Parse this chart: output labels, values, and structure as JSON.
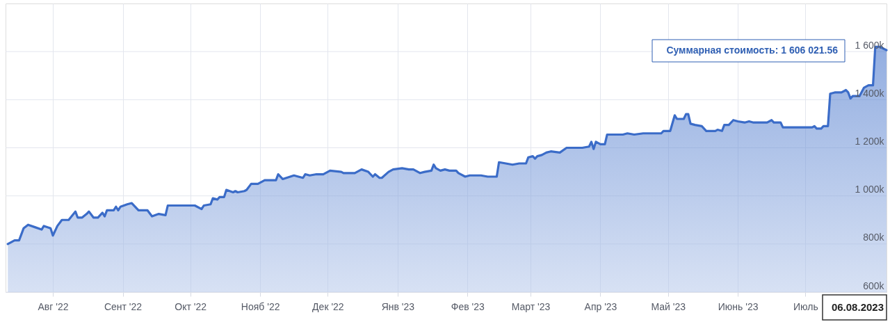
{
  "chart_data": {
    "type": "area",
    "x": [
      "2022-07-12",
      "2022-07-15",
      "2022-07-17",
      "2022-07-19",
      "2022-07-21",
      "2022-07-24",
      "2022-07-27",
      "2022-07-28",
      "2022-07-31",
      "2022-08-01",
      "2022-08-03",
      "2022-08-05",
      "2022-08-08",
      "2022-08-11",
      "2022-08-12",
      "2022-08-14",
      "2022-08-16",
      "2022-08-17",
      "2022-08-19",
      "2022-08-21",
      "2022-08-23",
      "2022-08-24",
      "2022-08-25",
      "2022-08-28",
      "2022-08-29",
      "2022-08-30",
      "2022-08-31",
      "2022-09-03",
      "2022-09-05",
      "2022-09-08",
      "2022-09-12",
      "2022-09-14",
      "2022-09-17",
      "2022-09-20",
      "2022-09-21",
      "2022-10-03",
      "2022-10-06",
      "2022-10-07",
      "2022-10-10",
      "2022-10-11",
      "2022-10-13",
      "2022-10-14",
      "2022-10-16",
      "2022-10-17",
      "2022-10-20",
      "2022-10-21",
      "2022-10-22",
      "2022-10-25",
      "2022-10-26",
      "2022-10-28",
      "2022-10-31",
      "2022-11-03",
      "2022-11-08",
      "2022-11-09",
      "2022-11-11",
      "2022-11-16",
      "2022-11-20",
      "2022-11-21",
      "2022-11-23",
      "2022-11-26",
      "2022-11-29",
      "2022-12-02",
      "2022-12-07",
      "2022-12-08",
      "2022-12-13",
      "2022-12-16",
      "2022-12-19",
      "2022-12-21",
      "2022-12-22",
      "2022-12-24",
      "2022-12-25",
      "2022-12-28",
      "2022-12-30",
      "2023-01-03",
      "2023-01-06",
      "2023-01-08",
      "2023-01-11",
      "2023-01-13",
      "2023-01-16",
      "2023-01-17",
      "2023-01-18",
      "2023-01-20",
      "2023-01-22",
      "2023-01-24",
      "2023-01-27",
      "2023-01-28",
      "2023-01-31",
      "2023-02-02",
      "2023-02-07",
      "2023-02-10",
      "2023-02-14",
      "2023-02-15",
      "2023-02-18",
      "2023-02-21",
      "2023-02-24",
      "2023-02-27",
      "2023-02-28",
      "2023-03-02",
      "2023-03-03",
      "2023-03-04",
      "2023-03-06",
      "2023-03-08",
      "2023-03-10",
      "2023-03-14",
      "2023-03-17",
      "2023-03-24",
      "2023-03-27",
      "2023-03-28",
      "2023-03-29",
      "2023-03-30",
      "2023-04-01",
      "2023-04-03",
      "2023-04-04",
      "2023-04-11",
      "2023-04-13",
      "2023-04-16",
      "2023-04-20",
      "2023-04-28",
      "2023-04-29",
      "2023-05-02",
      "2023-05-04",
      "2023-05-05",
      "2023-05-08",
      "2023-05-09",
      "2023-05-10",
      "2023-05-11",
      "2023-05-13",
      "2023-05-16",
      "2023-05-18",
      "2023-05-22",
      "2023-05-23",
      "2023-05-25",
      "2023-05-26",
      "2023-05-28",
      "2023-05-30",
      "2023-06-01",
      "2023-06-04",
      "2023-06-06",
      "2023-06-08",
      "2023-06-14",
      "2023-06-16",
      "2023-06-17",
      "2023-06-20",
      "2023-06-21",
      "2023-06-24",
      "2023-07-04",
      "2023-07-05",
      "2023-07-06",
      "2023-07-08",
      "2023-07-09",
      "2023-07-11",
      "2023-07-12",
      "2023-07-14",
      "2023-07-17",
      "2023-07-19",
      "2023-07-20",
      "2023-07-21",
      "2023-07-22",
      "2023-07-25",
      "2023-07-27",
      "2023-07-29",
      "2023-07-31",
      "2023-08-01",
      "2023-08-03",
      "2023-08-06"
    ],
    "series": [
      {
        "color": "#3b6cc8",
        "values": [
          800000,
          815000,
          815000,
          865000,
          880000,
          870000,
          860000,
          875000,
          865000,
          835000,
          875000,
          900000,
          900000,
          935000,
          910000,
          910000,
          925000,
          935000,
          910000,
          910000,
          930000,
          915000,
          940000,
          940000,
          955000,
          940000,
          955000,
          965000,
          970000,
          940000,
          940000,
          915000,
          925000,
          920000,
          960000,
          960000,
          945000,
          960000,
          965000,
          990000,
          985000,
          995000,
          995000,
          1025000,
          1015000,
          1020000,
          1015000,
          1020000,
          1025000,
          1050000,
          1050000,
          1065000,
          1065000,
          1090000,
          1070000,
          1085000,
          1075000,
          1090000,
          1085000,
          1090000,
          1090000,
          1105000,
          1100000,
          1095000,
          1095000,
          1110000,
          1100000,
          1080000,
          1090000,
          1075000,
          1075000,
          1100000,
          1110000,
          1115000,
          1110000,
          1110000,
          1095000,
          1100000,
          1105000,
          1130000,
          1115000,
          1105000,
          1110000,
          1105000,
          1105000,
          1095000,
          1080000,
          1085000,
          1085000,
          1080000,
          1080000,
          1140000,
          1135000,
          1130000,
          1135000,
          1135000,
          1160000,
          1165000,
          1155000,
          1165000,
          1170000,
          1180000,
          1185000,
          1180000,
          1200000,
          1200000,
          1205000,
          1225000,
          1195000,
          1225000,
          1215000,
          1215000,
          1255000,
          1255000,
          1260000,
          1255000,
          1260000,
          1260000,
          1270000,
          1270000,
          1335000,
          1320000,
          1320000,
          1340000,
          1340000,
          1300000,
          1295000,
          1290000,
          1270000,
          1270000,
          1275000,
          1270000,
          1295000,
          1295000,
          1315000,
          1310000,
          1305000,
          1310000,
          1305000,
          1305000,
          1315000,
          1305000,
          1305000,
          1285000,
          1285000,
          1285000,
          1290000,
          1280000,
          1280000,
          1290000,
          1290000,
          1425000,
          1430000,
          1430000,
          1440000,
          1430000,
          1405000,
          1415000,
          1415000,
          1450000,
          1460000,
          1460000,
          1620000,
          1620000,
          1606021.56
        ]
      }
    ],
    "xlim": [
      "2022-07-11",
      "2023-08-06"
    ],
    "xticks": [
      {
        "value": "2022-08-01",
        "label": "Авг '22"
      },
      {
        "value": "2022-09-01",
        "label": "Сент '22"
      },
      {
        "value": "2022-10-01",
        "label": "Окт '22"
      },
      {
        "value": "2022-11-01",
        "label": "Нояб '22"
      },
      {
        "value": "2022-12-01",
        "label": "Дек '22"
      },
      {
        "value": "2023-01-01",
        "label": "Янв '23"
      },
      {
        "value": "2023-02-01",
        "label": "Фев '23"
      },
      {
        "value": "2023-03-01",
        "label": "Март '23"
      },
      {
        "value": "2023-04-01",
        "label": "Апр '23"
      },
      {
        "value": "2023-05-01",
        "label": "Май '23"
      },
      {
        "value": "2023-06-01",
        "label": "Июнь '23"
      },
      {
        "value": "2023-07-01",
        "label": "Июль"
      }
    ],
    "ylim": [
      600000,
      1800000
    ],
    "yticks": [
      {
        "value": 600000,
        "label": "600k"
      },
      {
        "value": 800000,
        "label": "800k"
      },
      {
        "value": 1000000,
        "label": "1 000k"
      },
      {
        "value": 1200000,
        "label": "1 200k"
      },
      {
        "value": 1400000,
        "label": "1 400k"
      },
      {
        "value": 1600000,
        "label": "1 600k"
      }
    ],
    "grid": true,
    "annotations": [
      "Суммарная стоимость: 1 606 021.56",
      {
        "text": "06.08.2023",
        "x": "2023-08-06"
      }
    ]
  }
}
